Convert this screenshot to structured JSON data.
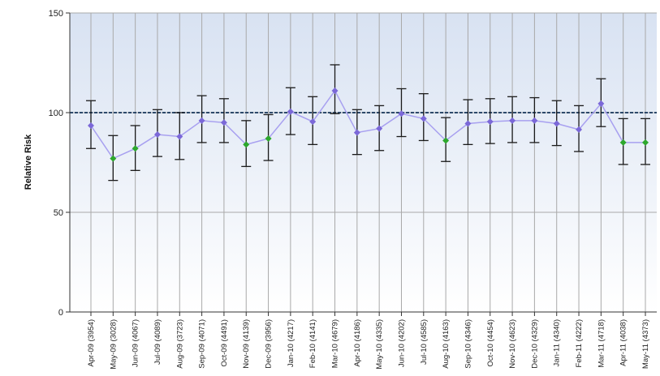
{
  "chart_data": {
    "type": "line",
    "ylabel": "Relative Risk",
    "ylim": [
      0,
      150
    ],
    "yticks": [
      0,
      50,
      100,
      150
    ],
    "reference_line": 100,
    "categories": [
      "Apr-09 (3954)",
      "May-09 (3028)",
      "Jun-09 (4067)",
      "Jul-09 (4089)",
      "Aug-09 (3723)",
      "Sep-09 (4071)",
      "Oct-09 (4491)",
      "Nov-09 (4139)",
      "Dec-09 (3956)",
      "Jan-10 (4217)",
      "Feb-10 (4141)",
      "Mar-10 (4679)",
      "Apr-10 (4186)",
      "May-10 (4335)",
      "Jun-10 (4202)",
      "Jul-10 (4585)",
      "Aug-10 (4163)",
      "Sep-10 (4346)",
      "Oct-10 (4454)",
      "Nov-10 (4623)",
      "Dec-10 (4329)",
      "Jan-11 (4340)",
      "Feb-11 (4222)",
      "Mar-11 (4718)",
      "Apr-11 (4038)",
      "May-11 (4373)"
    ],
    "series": [
      {
        "values": [
          93.5,
          77,
          82,
          89,
          88,
          96,
          95,
          84,
          87,
          100.5,
          95.5,
          111,
          90,
          92,
          99.5,
          97,
          86,
          94.5,
          95.5,
          96,
          96,
          94.5,
          91.5,
          104.5,
          85,
          85
        ],
        "lower": [
          82,
          66,
          71,
          78,
          76.5,
          85,
          85,
          73,
          76,
          89,
          84,
          99.5,
          79,
          81,
          88,
          86,
          75.5,
          84,
          84.5,
          85,
          85,
          83.5,
          80.5,
          93,
          74,
          74
        ],
        "upper": [
          106,
          88.5,
          93.5,
          101.5,
          100,
          108.5,
          107,
          96,
          99,
          112.5,
          108,
          124,
          101.5,
          103.5,
          112,
          109.5,
          97.5,
          106.5,
          107,
          108,
          107.5,
          106,
          103.5,
          117,
          97,
          97
        ],
        "point_colors": [
          "#7b68d8",
          "#2da82d",
          "#2da82d",
          "#7b68d8",
          "#7b68d8",
          "#7b68d8",
          "#7b68d8",
          "#2da82d",
          "#2da82d",
          "#7b68d8",
          "#7b68d8",
          "#7b68d8",
          "#7b68d8",
          "#7b68d8",
          "#7b68d8",
          "#7b68d8",
          "#2da82d",
          "#7b68d8",
          "#7b68d8",
          "#7b68d8",
          "#7b68d8",
          "#7b68d8",
          "#7b68d8",
          "#7b68d8",
          "#2da82d",
          "#2da82d"
        ]
      }
    ],
    "grid": true,
    "legend": "none",
    "colors": {
      "line": "#a8a0f0",
      "error_bar": "#1a1a1a",
      "reference_line": "#2e4a6b",
      "plot_bg_top": "#d8e2f2",
      "plot_bg_bottom": "#ffffff",
      "grid": "#a9a9a9"
    }
  }
}
